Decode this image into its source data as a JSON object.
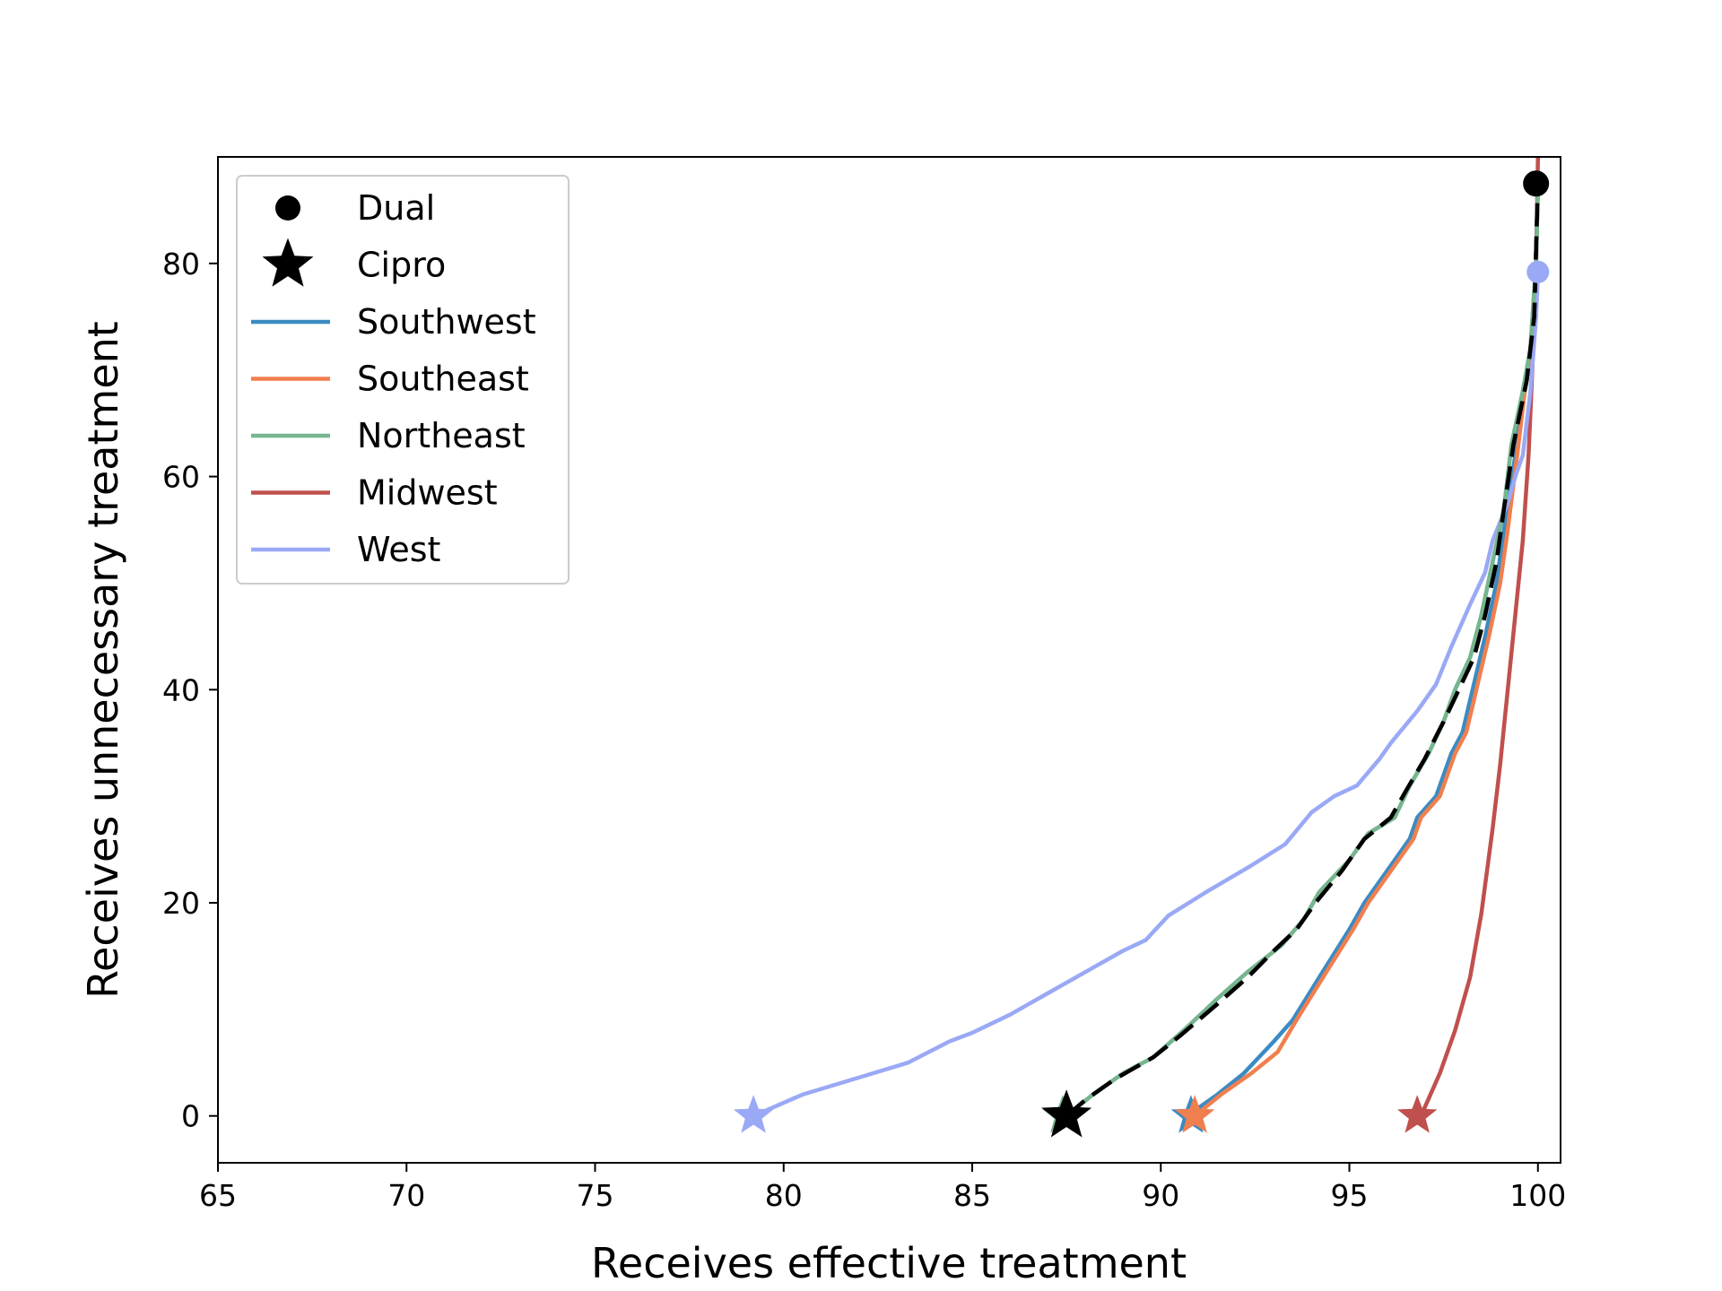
{
  "chart_data": {
    "type": "line",
    "title": "",
    "xlabel": "Receives effective treatment",
    "ylabel": "Receives unnecessary treatment",
    "xlim": [
      65,
      100.6
    ],
    "ylim": [
      -4.4,
      90
    ],
    "xticks": [
      "65",
      "70",
      "75",
      "80",
      "85",
      "90",
      "95",
      "100"
    ],
    "yticks": [
      "0",
      "20",
      "40",
      "60",
      "80"
    ],
    "grid": false,
    "legend_position": "top-left",
    "legend": [
      {
        "label": "Dual",
        "kind": "marker-circle",
        "color": "#000000"
      },
      {
        "label": "Cipro",
        "kind": "marker-star",
        "color": "#000000"
      },
      {
        "label": "Southwest",
        "kind": "line",
        "color": "#3b8bc2"
      },
      {
        "label": "Southeast",
        "kind": "line",
        "color": "#f07f4f"
      },
      {
        "label": "Northeast",
        "kind": "line",
        "color": "#76b58f"
      },
      {
        "label": "Midwest",
        "kind": "line",
        "color": "#c0504d"
      },
      {
        "label": "West",
        "kind": "line",
        "color": "#9aa9f5"
      }
    ],
    "series": [
      {
        "name": "Southwest",
        "color": "#3b8bc2",
        "points": [
          [
            90.7,
            0
          ],
          [
            91.5,
            2
          ],
          [
            92.2,
            4
          ],
          [
            93.0,
            7
          ],
          [
            93.5,
            9
          ],
          [
            94.2,
            13
          ],
          [
            95.0,
            17.5
          ],
          [
            95.4,
            20
          ],
          [
            96.0,
            23
          ],
          [
            96.6,
            26
          ],
          [
            96.8,
            28
          ],
          [
            97.3,
            30
          ],
          [
            97.7,
            34
          ],
          [
            98.0,
            36
          ],
          [
            98.2,
            39
          ],
          [
            98.6,
            45
          ],
          [
            98.9,
            50
          ],
          [
            99.1,
            55
          ],
          [
            99.4,
            62
          ],
          [
            99.6,
            68
          ],
          [
            99.8,
            72
          ],
          [
            99.95,
            80
          ],
          [
            100,
            87.5
          ]
        ],
        "cipro": [
          90.8,
          0
        ],
        "dual": null
      },
      {
        "name": "Southeast",
        "color": "#f07f4f",
        "points": [
          [
            90.9,
            0
          ],
          [
            91.6,
            2
          ],
          [
            92.4,
            4
          ],
          [
            93.1,
            6
          ],
          [
            93.6,
            9
          ],
          [
            94.3,
            13
          ],
          [
            95.1,
            17.5
          ],
          [
            95.5,
            20
          ],
          [
            96.1,
            23
          ],
          [
            96.7,
            26
          ],
          [
            96.9,
            28
          ],
          [
            97.4,
            30
          ],
          [
            97.8,
            34
          ],
          [
            98.1,
            36
          ],
          [
            98.3,
            39
          ],
          [
            98.7,
            45
          ],
          [
            99.0,
            50
          ],
          [
            99.2,
            55
          ],
          [
            99.45,
            62
          ],
          [
            99.65,
            68
          ],
          [
            99.85,
            72
          ],
          [
            99.95,
            80
          ],
          [
            100,
            87.5
          ]
        ],
        "cipro": [
          90.9,
          0
        ],
        "dual": null
      },
      {
        "name": "Northeast",
        "color": "#76b58f",
        "points": [
          [
            87.5,
            0
          ],
          [
            88.2,
            2
          ],
          [
            89.0,
            4
          ],
          [
            89.8,
            5.5
          ],
          [
            90.6,
            8
          ],
          [
            91.5,
            11
          ],
          [
            92.3,
            13.5
          ],
          [
            93.2,
            16
          ],
          [
            93.8,
            18.5
          ],
          [
            94.2,
            21
          ],
          [
            95.0,
            24
          ],
          [
            95.5,
            26.5
          ],
          [
            96.2,
            28
          ],
          [
            96.6,
            31
          ],
          [
            97.1,
            34
          ],
          [
            97.5,
            37
          ],
          [
            97.8,
            40
          ],
          [
            98.2,
            43
          ],
          [
            98.5,
            47
          ],
          [
            98.8,
            52
          ],
          [
            99.1,
            57
          ],
          [
            99.3,
            63
          ],
          [
            99.6,
            68
          ],
          [
            99.8,
            72
          ],
          [
            99.95,
            80
          ],
          [
            100,
            87.5
          ]
        ],
        "cipro": [
          87.4,
          0
        ],
        "dual": [
          99.95,
          87.5
        ]
      },
      {
        "name": "Midwest",
        "color": "#c0504d",
        "points": [
          [
            96.9,
            0
          ],
          [
            97.4,
            4
          ],
          [
            97.8,
            8
          ],
          [
            98.2,
            13
          ],
          [
            98.5,
            19
          ],
          [
            98.8,
            27
          ],
          [
            99.0,
            33
          ],
          [
            99.2,
            40
          ],
          [
            99.4,
            47
          ],
          [
            99.6,
            54
          ],
          [
            99.75,
            62
          ],
          [
            99.85,
            70
          ],
          [
            99.95,
            80
          ],
          [
            100,
            90
          ]
        ],
        "cipro": [
          96.8,
          0
        ],
        "dual": null
      },
      {
        "name": "West",
        "color": "#9aa9f5",
        "points": [
          [
            79.2,
            0
          ],
          [
            80.5,
            2
          ],
          [
            81.9,
            3.5
          ],
          [
            83.3,
            5
          ],
          [
            84.4,
            7
          ],
          [
            85.0,
            7.8
          ],
          [
            86.0,
            9.5
          ],
          [
            87.0,
            11.5
          ],
          [
            88.0,
            13.5
          ],
          [
            89.0,
            15.5
          ],
          [
            89.6,
            16.5
          ],
          [
            90.2,
            18.8
          ],
          [
            91.2,
            21
          ],
          [
            92.4,
            23.5
          ],
          [
            93.3,
            25.5
          ],
          [
            94.0,
            28.5
          ],
          [
            94.6,
            30
          ],
          [
            95.2,
            31
          ],
          [
            95.8,
            33.5
          ],
          [
            96.1,
            35
          ],
          [
            96.8,
            38
          ],
          [
            97.3,
            40.5
          ],
          [
            97.7,
            44
          ],
          [
            98.2,
            48
          ],
          [
            98.6,
            51
          ],
          [
            98.8,
            54
          ],
          [
            99.2,
            57.5
          ],
          [
            99.4,
            60
          ],
          [
            99.6,
            62
          ],
          [
            99.8,
            68
          ],
          [
            99.95,
            75
          ],
          [
            100,
            79.2
          ]
        ],
        "cipro": [
          79.2,
          0
        ],
        "dual": [
          100,
          79.2
        ]
      },
      {
        "name": "",
        "style": "dashed",
        "color": "#000000",
        "points": [
          [
            87.5,
            0
          ],
          [
            88.0,
            1.5
          ],
          [
            88.8,
            3.5
          ],
          [
            89.8,
            5.5
          ],
          [
            90.5,
            7.5
          ],
          [
            91.5,
            10.5
          ],
          [
            92.3,
            13
          ],
          [
            93.0,
            15.5
          ],
          [
            93.6,
            17.5
          ],
          [
            94.1,
            20
          ],
          [
            94.8,
            23
          ],
          [
            95.4,
            26
          ],
          [
            96.1,
            28
          ],
          [
            96.5,
            30.5
          ],
          [
            97.0,
            33.5
          ],
          [
            97.5,
            37
          ],
          [
            97.9,
            40
          ],
          [
            98.3,
            43
          ],
          [
            98.6,
            47
          ],
          [
            98.9,
            52
          ],
          [
            99.1,
            57
          ],
          [
            99.35,
            63
          ],
          [
            99.7,
            69
          ],
          [
            99.9,
            75
          ],
          [
            100,
            87.5
          ]
        ],
        "cipro": [
          87.5,
          0
        ],
        "dual": [
          99.95,
          87.5
        ]
      }
    ]
  }
}
